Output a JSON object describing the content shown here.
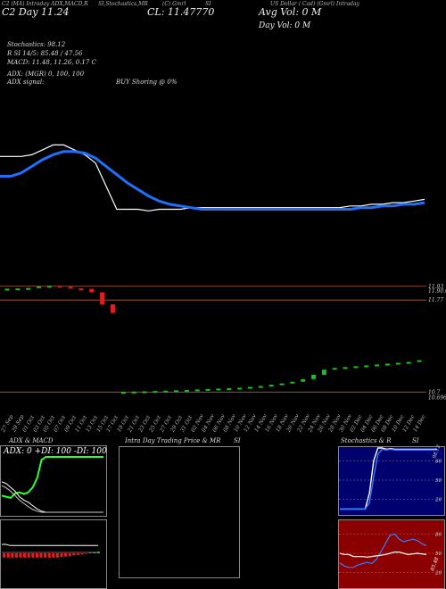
{
  "header": {
    "row1": {
      "left": "C2 (MA) Intraday ADX,MACD,R",
      "mid": "SI,Stochastics,MR",
      "close_tag": "(C) Gmrl",
      "close_sym": "SI",
      "right": "US Dollar ( Cad) (Gmrl) Intraday",
      "close_value": "CL: 11.47770",
      "avg_vol": "Avg Vol: 0  M",
      "day_vol": "Day Vol: 0   M"
    },
    "row2": "C2  Day  11.24",
    "stochastics": "Stochastics: 98.12",
    "rsi_line": "R                          SI 14/5: 85.48 / 47.56",
    "macd_line": "MACD: 11.48, 11.26, 0.17 C",
    "adx_line": "ADX:                            (MGR) 0,  100,  100",
    "adx_signal_label": "ADX  signal:",
    "adx_signal_value": "BUY Shoring @ 0%"
  },
  "chart_data": [
    {
      "type": "line",
      "name": "price-panel",
      "x": [
        0,
        1,
        2,
        3,
        4,
        5,
        6,
        7,
        8,
        9,
        10,
        11,
        12,
        13,
        14,
        15,
        16,
        17,
        18,
        19,
        20,
        21,
        22,
        23,
        24,
        25,
        26,
        27,
        28,
        29,
        30,
        31,
        32,
        33,
        34,
        35,
        36,
        37,
        38,
        39,
        40
      ],
      "series": [
        {
          "name": "",
          "color": "#ffffff",
          "values": [
            62,
            62,
            62,
            63,
            66,
            69,
            69,
            66,
            63,
            58,
            44,
            30,
            30,
            30,
            29,
            30,
            30,
            30,
            31,
            31,
            31,
            31,
            31,
            31,
            31,
            31,
            31,
            31,
            31,
            31,
            31,
            31,
            31,
            32,
            32,
            33,
            33,
            34,
            34,
            35,
            36
          ]
        },
        {
          "name": "",
          "color": "#1f6fff",
          "values": [
            50,
            50,
            52,
            56,
            60,
            63,
            65,
            65,
            64,
            61,
            56,
            51,
            46,
            42,
            38,
            35,
            33,
            32,
            31,
            30,
            30,
            30,
            30,
            30,
            30,
            30,
            30,
            30,
            30,
            30,
            30,
            30,
            30,
            30,
            31,
            31,
            32,
            32,
            33,
            33,
            34
          ]
        }
      ],
      "ylim": [
        0,
        100
      ]
    },
    {
      "type": "bar",
      "name": "candles",
      "categories": [
        "27 Sep",
        "29 Sep",
        "01 Oct",
        "03 Oct",
        "05 Oct",
        "07 Oct",
        "09 Oct",
        "11 Oct",
        "13 Oct",
        "15 Oct",
        "17 Oct",
        "19 Oct",
        "21 Oct",
        "23 Oct",
        "25 Oct",
        "27 Oct",
        "29 Oct",
        "31 Oct",
        "02 Nov",
        "04 Nov",
        "06 Nov",
        "08 Nov",
        "10 Nov",
        "12 Nov",
        "14 Nov",
        "16 Nov",
        "18 Nov",
        "20 Nov",
        "22 Nov",
        "24 Nov",
        "26 Nov",
        "28 Nov",
        "30 Nov",
        "02 Dec",
        "04 Dec",
        "06 Dec",
        "08 Dec",
        "10 Dec",
        "12 Dec",
        "14 Dec"
      ],
      "open": [
        11.9,
        11.902,
        11.905,
        11.91,
        11.93,
        11.935,
        11.925,
        11.905,
        11.9,
        11.86,
        11.72,
        10.7,
        10.702,
        10.705,
        10.708,
        10.712,
        10.716,
        10.72,
        10.725,
        10.73,
        10.735,
        10.74,
        10.745,
        10.75,
        10.76,
        10.77,
        10.785,
        10.8,
        10.82,
        10.85,
        10.9,
        10.96,
        10.98,
        10.99,
        11.0,
        11.01,
        11.02,
        11.03,
        11.04,
        11.05
      ],
      "close": [
        11.902,
        11.905,
        11.91,
        11.93,
        11.935,
        11.925,
        11.905,
        11.9,
        11.86,
        11.72,
        11.62,
        10.702,
        10.705,
        10.708,
        10.712,
        10.716,
        10.72,
        10.725,
        10.73,
        10.735,
        10.74,
        10.745,
        10.75,
        10.76,
        10.77,
        10.785,
        10.8,
        10.82,
        10.85,
        10.9,
        10.96,
        10.98,
        10.99,
        11.0,
        11.01,
        11.02,
        11.03,
        11.04,
        11.05,
        11.07
      ],
      "price_labels": [
        "11.93",
        "11.90.055",
        "11.77",
        "10.7",
        "10.69656"
      ],
      "ylim": [
        10.62,
        11.99
      ]
    },
    {
      "type": "line",
      "name": "adx-macd",
      "title": "ADX  & MACD",
      "label": "ADX: 0  +DI: 100  -DI: 100",
      "series": [
        {
          "name": "+DI",
          "color": "#2dff2d",
          "values": [
            30,
            28,
            26,
            34,
            36,
            33,
            36,
            45,
            62,
            95,
            100,
            100,
            100,
            100,
            100,
            100,
            100,
            100,
            100,
            100,
            100,
            100,
            100,
            100
          ]
        },
        {
          "name": "-DI",
          "color": "#ffffff",
          "values": [
            55,
            52,
            45,
            38,
            28,
            22,
            18,
            12,
            6,
            2,
            0,
            0,
            0,
            0,
            0,
            0,
            0,
            0,
            0,
            0,
            0,
            0,
            0,
            0
          ]
        },
        {
          "name": "ADX",
          "color": "#cccccc",
          "values": [
            48,
            44,
            38,
            30,
            22,
            16,
            10,
            5,
            2,
            0,
            0,
            0,
            0,
            0,
            0,
            0,
            0,
            0,
            0,
            0,
            0,
            0,
            0,
            0
          ]
        }
      ],
      "macd_panel": {
        "macd": [
          0.6,
          0.6,
          0.5,
          0.5,
          0.5,
          0.5,
          0.5,
          0.5,
          0.5,
          0.5,
          0.5,
          0.5,
          0.5,
          0.5,
          0.5,
          0.5,
          0.5,
          0.5,
          0.5,
          0.5,
          0.5,
          0.5,
          0.5,
          0.5
        ],
        "histogram": [
          -0.8,
          -0.8,
          -0.8,
          -0.8,
          -0.8,
          -0.8,
          -0.8,
          -0.8,
          -0.8,
          -0.8,
          -0.8,
          -0.8,
          -0.8,
          -0.8,
          -0.7,
          -0.6,
          -0.5,
          -0.4,
          -0.3,
          -0.2,
          -0.1,
          0.1,
          0.2,
          0.3
        ]
      }
    },
    {
      "type": "line",
      "name": "intraday",
      "title": "Intra  Day Trading Price  & MR",
      "title_suffix": "SI",
      "series": []
    },
    {
      "type": "line",
      "name": "stochastics",
      "title": "Stochastics & R",
      "title_suffix": "SI",
      "series": [
        {
          "name": "%K",
          "color": "#ffffff",
          "values": [
            5,
            5,
            5,
            5,
            5,
            5,
            5,
            30,
            80,
            100,
            100,
            98,
            99,
            98,
            98,
            98,
            98,
            98,
            98,
            98,
            98,
            98,
            98,
            98
          ]
        },
        {
          "name": "%D",
          "color": "#3a7bff",
          "values": [
            5,
            5,
            5,
            5,
            5,
            5,
            5,
            15,
            55,
            90,
            98,
            97,
            98,
            97,
            97,
            97,
            97,
            97,
            97,
            97,
            97,
            97,
            97,
            97
          ]
        }
      ],
      "ticks": [
        "98.12",
        "80",
        "50",
        "20"
      ],
      "ylim": [
        0,
        100
      ]
    },
    {
      "type": "line",
      "name": "rsi-mrsi",
      "series": [
        {
          "name": "RSI",
          "color": "#3a7bff",
          "values": [
            35,
            30,
            28,
            28,
            32,
            34,
            36,
            34,
            40,
            52,
            65,
            78,
            80,
            72,
            68,
            70,
            72,
            70,
            65,
            62
          ]
        },
        {
          "name": "MRSI",
          "color": "#ffffff",
          "values": [
            50,
            48,
            48,
            45,
            45,
            45,
            44,
            45,
            46,
            47,
            48,
            50,
            52,
            52,
            50,
            48,
            49,
            50,
            49,
            48
          ]
        }
      ],
      "ticks": [
        "80",
        "50",
        "20"
      ],
      "value_label": "85.48",
      "ylim": [
        0,
        100
      ]
    }
  ],
  "colors": {
    "background": "#000000",
    "price": "#ffffff",
    "ma": "#1f6fff",
    "up": "#19c319",
    "down": "#e21d1d",
    "stoch_bg": "#00006e",
    "rsi_bg": "#8b0000"
  }
}
